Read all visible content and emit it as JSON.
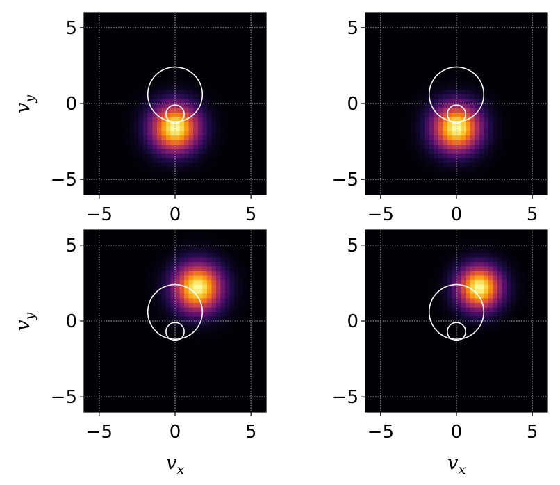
{
  "chart_data": [
    {
      "type": "heatmap",
      "xlabel": "",
      "ylabel": "v_y",
      "xlim": [
        -6,
        6
      ],
      "ylim": [
        -6,
        6
      ],
      "xticks": [
        -5,
        0,
        5
      ],
      "yticks": [
        -5,
        0,
        5
      ],
      "xtick_labels": [
        "−5",
        "0",
        "5"
      ],
      "ytick_labels": [
        "−5",
        "0",
        "5"
      ],
      "grid": true,
      "colormap": "inferno",
      "blob": {
        "center": [
          0.0,
          -1.6
        ],
        "sigma": 1.1
      },
      "circles": [
        {
          "center": [
            0,
            0.6
          ],
          "radius": 1.8
        },
        {
          "center": [
            0,
            -0.7
          ],
          "radius": 0.6
        }
      ]
    },
    {
      "type": "heatmap",
      "xlabel": "",
      "ylabel": "",
      "xlim": [
        -6,
        6
      ],
      "ylim": [
        -6,
        6
      ],
      "xticks": [
        -5,
        0,
        5
      ],
      "yticks": [
        -5,
        0,
        5
      ],
      "xtick_labels": [
        "−5",
        "0",
        "5"
      ],
      "ytick_labels": [
        "−5",
        "0",
        "5"
      ],
      "grid": true,
      "colormap": "inferno",
      "blob": {
        "center": [
          0.0,
          -1.6
        ],
        "sigma": 1.1
      },
      "circles": [
        {
          "center": [
            0,
            0.6
          ],
          "radius": 1.8
        },
        {
          "center": [
            0,
            -0.7
          ],
          "radius": 0.6
        }
      ]
    },
    {
      "type": "heatmap",
      "xlabel": "v_x",
      "ylabel": "v_y",
      "xlim": [
        -6,
        6
      ],
      "ylim": [
        -6,
        6
      ],
      "xticks": [
        -5,
        0,
        5
      ],
      "yticks": [
        -5,
        0,
        5
      ],
      "xtick_labels": [
        "−5",
        "0",
        "5"
      ],
      "ytick_labels": [
        "−5",
        "0",
        "5"
      ],
      "grid": true,
      "colormap": "inferno",
      "blob": {
        "center": [
          1.5,
          2.2
        ],
        "sigma": 1.1
      },
      "circles": [
        {
          "center": [
            0,
            0.6
          ],
          "radius": 1.8
        },
        {
          "center": [
            0,
            -0.7
          ],
          "radius": 0.6
        }
      ]
    },
    {
      "type": "heatmap",
      "xlabel": "v_x",
      "ylabel": "",
      "xlim": [
        -6,
        6
      ],
      "ylim": [
        -6,
        6
      ],
      "xticks": [
        -5,
        0,
        5
      ],
      "yticks": [
        -5,
        0,
        5
      ],
      "xtick_labels": [
        "−5",
        "0",
        "5"
      ],
      "ytick_labels": [
        "−5",
        "0",
        "5"
      ],
      "grid": true,
      "colormap": "inferno",
      "blob": {
        "center": [
          1.5,
          2.2
        ],
        "sigma": 1.0
      },
      "circles": [
        {
          "center": [
            0,
            0.6
          ],
          "radius": 1.8
        },
        {
          "center": [
            0,
            -0.7
          ],
          "radius": 0.6
        }
      ]
    }
  ],
  "labels": {
    "vx_sym": "v",
    "vx_sub": "x",
    "vy_sym": "v",
    "vy_sub": "y"
  }
}
